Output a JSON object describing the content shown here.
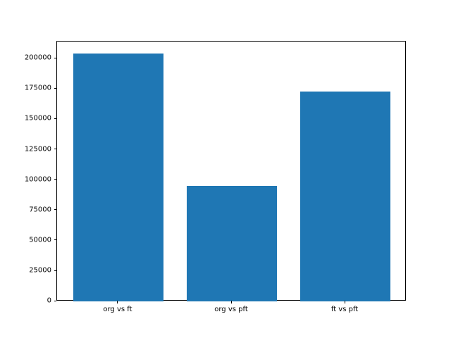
{
  "figure": {
    "background": "#ffffff",
    "text_color": "#000000"
  },
  "chart_data": {
    "type": "bar",
    "title": "",
    "xlabel": "",
    "ylabel": "",
    "categories": [
      "org vs ft",
      "org vs pft",
      "ft vs pft"
    ],
    "values": [
      204000,
      95000,
      173000
    ],
    "bar_color": "#1f77b4",
    "ylim": [
      0,
      214200
    ],
    "yticks": [
      0,
      25000,
      50000,
      75000,
      100000,
      125000,
      150000,
      175000,
      200000
    ],
    "yticklabels": [
      "0",
      "25000",
      "50000",
      "75000",
      "100000",
      "125000",
      "150000",
      "175000",
      "200000"
    ],
    "bar_width": 0.8,
    "x_margin": 0.05,
    "grid": false,
    "legend": null
  }
}
